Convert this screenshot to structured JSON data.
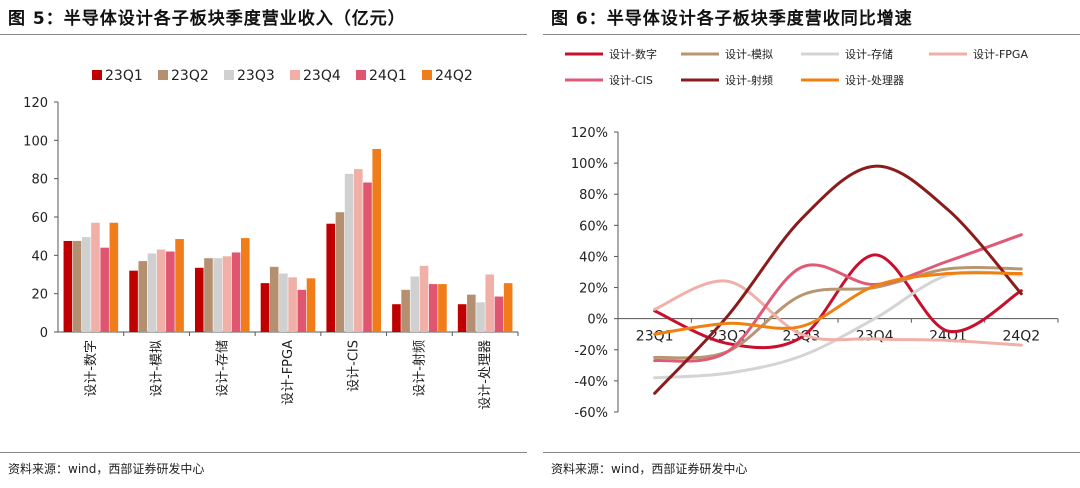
{
  "left": {
    "figure_title": "图 5：半导体设计各子板块季度营业收入（亿元）",
    "source": "资料来源：wind，西部证券研发中心"
  },
  "right": {
    "figure_title": "图 6：半导体设计各子板块季度营收同比增速",
    "source": "资料来源：wind，西部证券研发中心"
  },
  "chart_data": [
    {
      "type": "bar",
      "title": "半导体设计各子板块季度营业收入（亿元）",
      "categories": [
        "设计-数字",
        "设计-模拟",
        "设计-存储",
        "设计-FPGA",
        "设计-CIS",
        "设计-射频",
        "设计-处理器"
      ],
      "series": [
        {
          "name": "23Q1",
          "color": "#c00000",
          "values": [
            47.5,
            32,
            33.5,
            25.5,
            56.5,
            14.5,
            14.5
          ]
        },
        {
          "name": "23Q2",
          "color": "#b59070",
          "values": [
            47.5,
            37,
            38.5,
            34,
            62.5,
            22,
            19.5
          ]
        },
        {
          "name": "23Q3",
          "color": "#d0d0d0",
          "values": [
            49.5,
            41,
            38.5,
            30.5,
            82.5,
            29,
            15.5
          ]
        },
        {
          "name": "23Q4",
          "color": "#f0b0a8",
          "values": [
            57,
            43,
            39.5,
            28.5,
            85,
            34.5,
            30
          ]
        },
        {
          "name": "24Q1",
          "color": "#e05570",
          "values": [
            44,
            42,
            41.5,
            22,
            78,
            25,
            18.5
          ]
        },
        {
          "name": "24Q2",
          "color": "#f07d1a",
          "values": [
            57,
            48.5,
            49,
            28,
            95.5,
            25,
            25.5
          ]
        }
      ],
      "ylim": [
        0,
        120
      ],
      "yticks": [
        0,
        20,
        40,
        60,
        80,
        100,
        120
      ],
      "xlabel": "",
      "ylabel": "",
      "legend": "top"
    },
    {
      "type": "line",
      "title": "半导体设计各子板块季度营收同比增速",
      "categories": [
        "23Q1",
        "23Q2",
        "23Q3",
        "23Q4",
        "24Q1",
        "24Q2"
      ],
      "series": [
        {
          "name": "设计-数字",
          "color": "#c8102e",
          "values": [
            5,
            -16,
            -12,
            41,
            -8,
            18
          ]
        },
        {
          "name": "设计-模拟",
          "color": "#b89672",
          "values": [
            -25,
            -21,
            15,
            20,
            32,
            32
          ]
        },
        {
          "name": "设计-存储",
          "color": "#d4d4d4",
          "values": [
            -38,
            -35,
            -24,
            0,
            28,
            28
          ]
        },
        {
          "name": "设计-FPGA",
          "color": "#f0b0a8",
          "values": [
            6,
            24,
            -10,
            -13,
            -14,
            -17
          ]
        },
        {
          "name": "设计-CIS",
          "color": "#e05a78",
          "values": [
            -27,
            -21,
            33,
            22,
            37,
            54
          ]
        },
        {
          "name": "设计-射频",
          "color": "#8b1c1c",
          "values": [
            -48,
            2,
            64,
            98,
            70,
            16
          ]
        },
        {
          "name": "设计-处理器",
          "color": "#f08010",
          "values": [
            -10,
            -3,
            -5,
            21,
            29,
            29
          ]
        }
      ],
      "ylim": [
        -60,
        120
      ],
      "yticks": [
        "-60%",
        "-40%",
        "-20%",
        "0%",
        "20%",
        "40%",
        "60%",
        "80%",
        "100%",
        "120%"
      ],
      "xlabel": "",
      "ylabel": "",
      "legend": "top"
    }
  ]
}
